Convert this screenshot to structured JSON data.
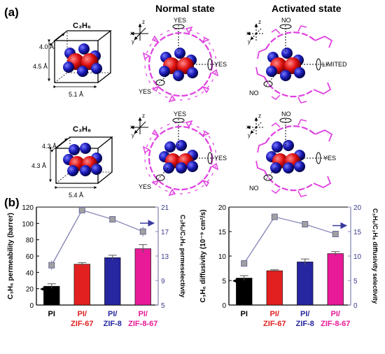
{
  "panel_a": {
    "label": "(a)",
    "col_normal": "Normal state",
    "col_activated": "Activated state",
    "rows": [
      {
        "molecule": "C₃H₆",
        "box": {
          "top": "4.0 Å",
          "side": "4.5 Å",
          "bottom": "5.1 Å"
        },
        "normal_labels": [
          "YES",
          "YES",
          "YES"
        ],
        "activated_labels": [
          "NO",
          "LIMITED",
          "NO"
        ]
      },
      {
        "molecule": "C₃H₈",
        "box": {
          "top": "4.3 Å",
          "side": "4.3 Å",
          "bottom": "5.4 Å"
        },
        "normal_labels": [
          "YES",
          "YES",
          "YES"
        ],
        "activated_labels": [
          "NO",
          "YES",
          "NO"
        ]
      }
    ],
    "axes": [
      "z",
      "x",
      "y"
    ],
    "colors": {
      "framework": "#e040e0",
      "carbon": "#1a1aa8",
      "hydrogen": "#e01010"
    }
  },
  "panel_b": {
    "label": "(b)",
    "bar_colors": [
      "#000000",
      "#e32020",
      "#2626a0",
      "#e81a98"
    ],
    "line_color": "#8a8ab8",
    "line_marker_color": "#a0a0a0"
  },
  "chart_data": [
    {
      "type": "bar",
      "categories": [
        "PI",
        "PI/\nZIF-67",
        "PI/\nZIF-8",
        "PI/\nZIF-8-67"
      ],
      "category_lines": [
        [
          "PI"
        ],
        [
          "PI/",
          "ZIF-67"
        ],
        [
          "PI/",
          "ZIF-8"
        ],
        [
          "PI/",
          "ZIF-8-67"
        ]
      ],
      "category_colors": [
        "#000000",
        "#e32020",
        "#2626a0",
        "#e81a98"
      ],
      "ylabel": "C₃H₆ permeability (barrer)",
      "y2label": "C₃H₆/C₃H₈ permeselectivity",
      "ylim": [
        0,
        120
      ],
      "yticks": [
        0,
        20,
        40,
        60,
        80,
        100,
        120
      ],
      "y2lim": [
        5,
        21
      ],
      "y2ticks": [
        5,
        9,
        13,
        17,
        21
      ],
      "series": [
        {
          "values": [
            23,
            50,
            58,
            69
          ],
          "errors": [
            3,
            2,
            3,
            5
          ],
          "axis": "left"
        },
        {
          "values": [
            11.5,
            20.5,
            19,
            17
          ],
          "errors": [
            0.8,
            0.3,
            0.4,
            0.8
          ],
          "axis": "right"
        }
      ],
      "grid": false
    },
    {
      "type": "bar",
      "categories": [
        "PI",
        "PI/\nZIF-67",
        "PI/\nZIF-8",
        "PI/\nZIF-8-67"
      ],
      "category_lines": [
        [
          "PI"
        ],
        [
          "PI/",
          "ZIF-67"
        ],
        [
          "PI/",
          "ZIF-8"
        ],
        [
          "PI/",
          "ZIF-8-67"
        ]
      ],
      "category_colors": [
        "#000000",
        "#e32020",
        "#2626a0",
        "#e81a98"
      ],
      "ylabel": "C₃H₆ diffusivity (10⁻⁹ cm²/s)",
      "y2label": "C₃H₆/C₃H₈ diffusivity selectivity",
      "ylim": [
        0,
        20
      ],
      "yticks": [
        0,
        5,
        10,
        15,
        20
      ],
      "y2lim": [
        0,
        20
      ],
      "y2ticks": [
        0,
        5,
        10,
        15,
        20
      ],
      "series": [
        {
          "values": [
            5.5,
            7,
            8.8,
            10.5
          ],
          "errors": [
            0.5,
            0.2,
            0.6,
            0.4
          ],
          "axis": "left"
        },
        {
          "values": [
            8.5,
            18,
            16.5,
            14.5
          ],
          "errors": [
            0.3,
            0.2,
            0.6,
            0.4
          ],
          "axis": "right"
        }
      ],
      "grid": false
    }
  ]
}
